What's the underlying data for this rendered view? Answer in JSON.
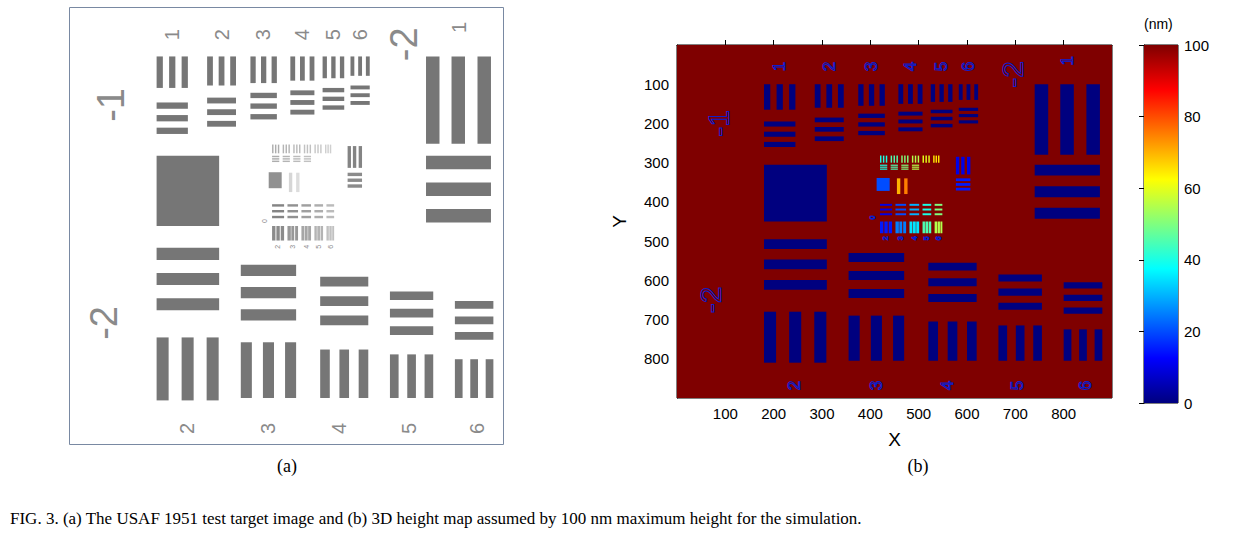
{
  "caption": "FIG. 3. (a) The USAF 1951 test target image and (b) 3D height map assumed by 100 nm maximum height for the simulation.",
  "target": {
    "background_value": 100,
    "bars": [
      [
        180,
        100,
        193,
        165,
        0
      ],
      [
        206,
        100,
        219,
        165,
        0
      ],
      [
        232,
        100,
        245,
        165,
        0
      ],
      [
        285,
        100,
        297,
        160,
        0
      ],
      [
        309,
        100,
        321,
        160,
        0
      ],
      [
        333,
        100,
        345,
        160,
        0
      ],
      [
        375,
        100,
        386,
        155,
        0
      ],
      [
        397,
        100,
        408,
        155,
        0
      ],
      [
        419,
        100,
        430,
        155,
        0
      ],
      [
        458,
        100,
        468,
        150,
        0
      ],
      [
        478,
        100,
        488,
        150,
        0
      ],
      [
        498,
        100,
        508,
        150,
        0
      ],
      [
        525,
        100,
        534,
        145,
        0
      ],
      [
        543,
        100,
        552,
        145,
        0
      ],
      [
        561,
        100,
        570,
        145,
        0
      ],
      [
        583,
        100,
        591,
        140,
        0
      ],
      [
        599,
        100,
        607,
        140,
        0
      ],
      [
        615,
        100,
        623,
        140,
        0
      ],
      [
        180,
        195,
        245,
        208,
        0
      ],
      [
        180,
        221,
        245,
        234,
        0
      ],
      [
        180,
        247,
        245,
        260,
        0
      ],
      [
        285,
        185,
        345,
        197,
        0
      ],
      [
        285,
        209,
        345,
        221,
        0
      ],
      [
        285,
        233,
        345,
        245,
        0
      ],
      [
        375,
        175,
        430,
        186,
        0
      ],
      [
        375,
        197,
        430,
        208,
        0
      ],
      [
        375,
        219,
        430,
        230,
        0
      ],
      [
        458,
        170,
        508,
        180,
        0
      ],
      [
        458,
        190,
        508,
        200,
        0
      ],
      [
        458,
        210,
        508,
        220,
        0
      ],
      [
        525,
        165,
        570,
        174,
        0
      ],
      [
        525,
        183,
        570,
        192,
        0
      ],
      [
        525,
        201,
        570,
        210,
        0
      ],
      [
        583,
        160,
        623,
        168,
        0
      ],
      [
        583,
        176,
        623,
        184,
        0
      ],
      [
        583,
        192,
        623,
        200,
        0
      ],
      [
        180,
        305,
        310,
        450,
        0
      ],
      [
        740,
        100,
        768,
        280,
        0
      ],
      [
        793,
        100,
        821,
        280,
        0
      ],
      [
        847,
        100,
        875,
        280,
        0
      ],
      [
        740,
        305,
        875,
        333,
        0
      ],
      [
        740,
        360,
        875,
        388,
        0
      ],
      [
        740,
        415,
        875,
        443,
        0
      ],
      [
        180,
        495,
        310,
        520,
        0
      ],
      [
        180,
        547,
        310,
        572,
        0
      ],
      [
        180,
        599,
        310,
        624,
        0
      ],
      [
        180,
        680,
        205,
        810,
        0
      ],
      [
        232,
        680,
        257,
        810,
        0
      ],
      [
        284,
        680,
        309,
        810,
        0
      ],
      [
        355,
        530,
        470,
        553,
        0
      ],
      [
        355,
        576,
        470,
        599,
        0
      ],
      [
        355,
        622,
        470,
        645,
        0
      ],
      [
        355,
        690,
        378,
        805,
        0
      ],
      [
        401,
        690,
        424,
        805,
        0
      ],
      [
        447,
        690,
        470,
        805,
        0
      ],
      [
        520,
        555,
        620,
        575,
        0
      ],
      [
        520,
        595,
        620,
        615,
        0
      ],
      [
        520,
        635,
        620,
        655,
        0
      ],
      [
        520,
        705,
        540,
        805,
        0
      ],
      [
        560,
        705,
        580,
        805,
        0
      ],
      [
        600,
        705,
        620,
        805,
        0
      ],
      [
        665,
        585,
        755,
        603,
        0
      ],
      [
        665,
        621,
        755,
        639,
        0
      ],
      [
        665,
        657,
        755,
        675,
        0
      ],
      [
        665,
        715,
        683,
        805,
        0
      ],
      [
        701,
        715,
        719,
        805,
        0
      ],
      [
        737,
        715,
        755,
        805,
        0
      ],
      [
        800,
        605,
        880,
        621,
        0
      ],
      [
        800,
        637,
        880,
        653,
        0
      ],
      [
        800,
        669,
        880,
        685,
        0
      ],
      [
        800,
        725,
        816,
        805,
        0
      ],
      [
        832,
        725,
        848,
        805,
        0
      ],
      [
        864,
        725,
        880,
        805,
        0
      ],
      [
        413,
        339,
        440,
        372,
        20
      ],
      [
        420,
        282,
        423,
        300,
        40
      ],
      [
        426,
        282,
        429,
        300,
        40
      ],
      [
        432,
        282,
        435,
        300,
        40
      ],
      [
        442,
        282,
        445,
        300,
        45
      ],
      [
        448,
        282,
        451,
        300,
        45
      ],
      [
        454,
        282,
        457,
        300,
        45
      ],
      [
        464,
        282,
        467,
        300,
        50
      ],
      [
        470,
        282,
        473,
        300,
        50
      ],
      [
        476,
        282,
        479,
        300,
        50
      ],
      [
        486,
        282,
        489,
        300,
        55
      ],
      [
        492,
        282,
        495,
        300,
        55
      ],
      [
        498,
        282,
        501,
        300,
        55
      ],
      [
        508,
        282,
        511,
        300,
        60
      ],
      [
        514,
        282,
        517,
        300,
        60
      ],
      [
        520,
        282,
        523,
        300,
        60
      ],
      [
        530,
        282,
        533,
        300,
        65
      ],
      [
        535,
        282,
        538,
        300,
        65
      ],
      [
        540,
        282,
        543,
        300,
        65
      ],
      [
        420,
        305,
        435,
        308,
        40
      ],
      [
        420,
        310,
        435,
        313,
        40
      ],
      [
        420,
        315,
        435,
        318,
        40
      ],
      [
        442,
        305,
        457,
        308,
        45
      ],
      [
        442,
        310,
        457,
        313,
        45
      ],
      [
        442,
        315,
        457,
        318,
        45
      ],
      [
        464,
        305,
        479,
        308,
        50
      ],
      [
        464,
        310,
        479,
        313,
        50
      ],
      [
        464,
        315,
        479,
        318,
        50
      ],
      [
        486,
        305,
        501,
        308,
        55
      ],
      [
        486,
        310,
        501,
        313,
        55
      ],
      [
        486,
        315,
        501,
        318,
        55
      ],
      [
        455,
        340,
        462,
        380,
        70
      ],
      [
        470,
        340,
        477,
        380,
        75
      ],
      [
        577,
        285,
        584,
        330,
        10
      ],
      [
        588,
        285,
        595,
        330,
        10
      ],
      [
        600,
        285,
        607,
        330,
        10
      ],
      [
        577,
        340,
        607,
        347,
        15
      ],
      [
        577,
        352,
        607,
        359,
        15
      ],
      [
        577,
        364,
        607,
        371,
        15
      ],
      [
        420,
        405,
        445,
        410,
        10
      ],
      [
        420,
        417,
        445,
        422,
        10
      ],
      [
        420,
        429,
        445,
        434,
        10
      ],
      [
        452,
        405,
        474,
        410,
        20
      ],
      [
        452,
        417,
        474,
        422,
        20
      ],
      [
        452,
        429,
        474,
        434,
        20
      ],
      [
        481,
        405,
        501,
        410,
        30
      ],
      [
        481,
        417,
        501,
        422,
        30
      ],
      [
        481,
        429,
        501,
        434,
        30
      ],
      [
        508,
        405,
        526,
        410,
        40
      ],
      [
        508,
        417,
        526,
        422,
        40
      ],
      [
        508,
        429,
        526,
        434,
        40
      ],
      [
        533,
        405,
        549,
        410,
        50
      ],
      [
        533,
        417,
        549,
        422,
        50
      ],
      [
        533,
        429,
        549,
        434,
        50
      ],
      [
        420,
        450,
        427,
        480,
        15
      ],
      [
        429,
        450,
        436,
        480,
        15
      ],
      [
        438,
        450,
        445,
        480,
        15
      ],
      [
        452,
        450,
        459,
        480,
        25
      ],
      [
        460,
        450,
        466,
        480,
        25
      ],
      [
        468,
        450,
        474,
        480,
        25
      ],
      [
        481,
        450,
        487,
        480,
        35
      ],
      [
        488,
        450,
        494,
        480,
        35
      ],
      [
        495,
        450,
        501,
        480,
        35
      ],
      [
        508,
        450,
        513,
        480,
        45
      ],
      [
        514,
        450,
        520,
        480,
        45
      ],
      [
        521,
        450,
        526,
        480,
        45
      ],
      [
        533,
        450,
        538,
        480,
        55
      ],
      [
        539,
        450,
        544,
        480,
        55
      ],
      [
        545,
        450,
        549,
        480,
        55
      ]
    ],
    "group_labels": [
      {
        "text": "-1",
        "x": 85,
        "y": 200
      },
      {
        "text": "-2",
        "x": 70,
        "y": 650
      },
      {
        "text": "-2",
        "x": 695,
        "y": 75
      }
    ],
    "element_labels": [
      {
        "text": "1",
        "x": 212,
        "y": 55
      },
      {
        "text": "2",
        "x": 315,
        "y": 55
      },
      {
        "text": "3",
        "x": 402,
        "y": 55
      },
      {
        "text": "4",
        "x": 483,
        "y": 55
      },
      {
        "text": "5",
        "x": 547,
        "y": 55
      },
      {
        "text": "6",
        "x": 603,
        "y": 55
      },
      {
        "text": "1",
        "x": 808,
        "y": 40
      },
      {
        "text": "2",
        "x": 243,
        "y": 868
      },
      {
        "text": "3",
        "x": 412,
        "y": 868
      },
      {
        "text": "4",
        "x": 560,
        "y": 868
      },
      {
        "text": "5",
        "x": 705,
        "y": 868
      },
      {
        "text": "6",
        "x": 845,
        "y": 868
      }
    ],
    "center_labels": [
      {
        "text": "0",
        "x": 405,
        "y": 440
      },
      {
        "text": "2",
        "x": 432,
        "y": 493
      },
      {
        "text": "3",
        "x": 463,
        "y": 493
      },
      {
        "text": "4",
        "x": 491,
        "y": 493
      },
      {
        "text": "5",
        "x": 517,
        "y": 493
      },
      {
        "text": "6",
        "x": 541,
        "y": 493
      }
    ]
  },
  "chart_data": [
    {
      "type": "image",
      "panel": "(a)",
      "xlim": [
        0,
        900
      ],
      "ylim": [
        0,
        900
      ],
      "tick_labels": false
    },
    {
      "type": "heatmap",
      "panel": "(b)",
      "x_label": "X",
      "y_label": "Y",
      "xlim": [
        0,
        900
      ],
      "ylim": [
        0,
        900
      ],
      "xticks": [
        100,
        200,
        300,
        400,
        500,
        600,
        700,
        800
      ],
      "yticks": [
        100,
        200,
        300,
        400,
        500,
        600,
        700,
        800
      ],
      "colorbar": {
        "range": [
          0,
          100
        ],
        "ticks": [
          0,
          20,
          40,
          60,
          80,
          100
        ],
        "title": "(nm)"
      }
    }
  ]
}
